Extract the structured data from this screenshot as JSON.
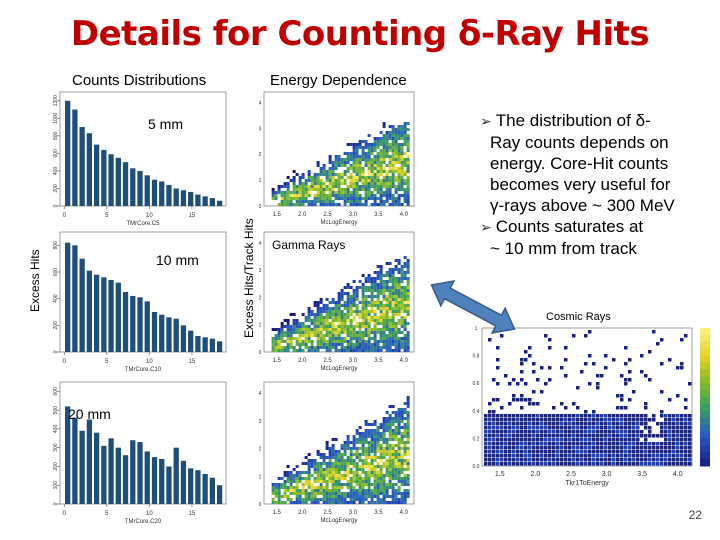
{
  "slide": {
    "title": "Details for Counting δ-Ray Hits",
    "counts_header": "Counts Distributions",
    "energy_header": "Energy Dependence",
    "label_5mm": "5 mm",
    "label_10mm": "10 mm",
    "label_20mm": "20 mm",
    "gamma_label": "Gamma Rays",
    "cosmic_label": "Cosmic Rays",
    "ylabel_excess_hits": "Excess Hits",
    "ylabel_excess_track": "Excess Hits/Track Hits",
    "bullets": [
      [
        "The distribution of δ-",
        "Ray counts depends on",
        "energy.  Core-Hit counts",
        "becomes very useful for",
        "γ-rays above ~ 300 MeV"
      ],
      [
        "Counts saturates at",
        "~ 10 mm from track"
      ]
    ],
    "page_number": "22",
    "colors": {
      "title": "#c00000",
      "bars": "#1f4e79",
      "arrow": "#4f81bd"
    }
  },
  "chart_data": [
    {
      "type": "bar",
      "panel": "counts-5mm",
      "xlabel": "TMrCore.C5",
      "x_ticks": [
        "0",
        "5",
        "10",
        "15"
      ],
      "y_ticks": [
        "0",
        "200",
        "400",
        "600",
        "800",
        "1000",
        "1200"
      ],
      "categories": [
        1,
        2,
        3,
        4,
        5,
        6,
        7,
        8,
        9,
        10,
        11,
        12,
        13,
        14,
        15,
        16,
        17,
        18,
        19,
        20,
        21,
        22
      ],
      "values": [
        1200,
        1100,
        900,
        830,
        700,
        640,
        590,
        550,
        500,
        430,
        400,
        350,
        300,
        280,
        240,
        200,
        180,
        160,
        130,
        110,
        90,
        60
      ],
      "ylim": [
        0,
        1300
      ]
    },
    {
      "type": "bar",
      "panel": "counts-10mm",
      "xlabel": "TMrCore.C10",
      "x_ticks": [
        "0",
        "5",
        "10",
        "15"
      ],
      "y_ticks": [
        "0",
        "200",
        "400",
        "600",
        "800"
      ],
      "categories": [
        1,
        2,
        3,
        4,
        5,
        6,
        7,
        8,
        9,
        10,
        11,
        12,
        13,
        14,
        15,
        16,
        17,
        18,
        19,
        20,
        21,
        22
      ],
      "values": [
        820,
        800,
        700,
        610,
        580,
        560,
        540,
        520,
        450,
        420,
        410,
        380,
        300,
        280,
        260,
        250,
        200,
        160,
        120,
        110,
        100,
        80
      ],
      "ylim": [
        0,
        900
      ]
    },
    {
      "type": "bar",
      "panel": "counts-20mm",
      "xlabel": "TMrCore.C20",
      "x_ticks": [
        "0",
        "5",
        "10",
        "15"
      ],
      "y_ticks": [
        "0",
        "100",
        "200",
        "300",
        "400",
        "500",
        "600"
      ],
      "categories": [
        1,
        2,
        3,
        4,
        5,
        6,
        7,
        8,
        9,
        10,
        11,
        12,
        13,
        14,
        15,
        16,
        17,
        18,
        19,
        20,
        21,
        22
      ],
      "values": [
        520,
        460,
        390,
        450,
        380,
        310,
        350,
        300,
        260,
        340,
        330,
        280,
        250,
        240,
        200,
        300,
        230,
        190,
        180,
        160,
        140,
        100
      ],
      "ylim": [
        0,
        650
      ]
    },
    {
      "type": "heatmap",
      "panel": "energy-5mm",
      "xlabel": "McLogEnergy",
      "x_ticks": [
        "1.5",
        "2.0",
        "2.5",
        "3.0",
        "3.5",
        "4.0"
      ],
      "y_ticks": [
        "0",
        "1",
        "2",
        "3",
        "4"
      ],
      "xlim": [
        1.25,
        4.2
      ],
      "ylim": [
        0,
        4.4
      ]
    },
    {
      "type": "heatmap",
      "panel": "energy-10mm",
      "xlabel": "McLogEnergy",
      "x_ticks": [
        "1.5",
        "2.0",
        "2.5",
        "3.0",
        "3.5",
        "4.0"
      ],
      "y_ticks": [
        "0",
        "1",
        "2",
        "3",
        "4"
      ],
      "xlim": [
        1.25,
        4.2
      ],
      "ylim": [
        0,
        4.4
      ]
    },
    {
      "type": "heatmap",
      "panel": "energy-20mm",
      "xlabel": "McLogEnergy",
      "x_ticks": [
        "1.5",
        "2.0",
        "2.5",
        "3.0",
        "3.5",
        "4.0"
      ],
      "y_ticks": [
        "0",
        "1",
        "2",
        "3",
        "4"
      ],
      "xlim": [
        1.25,
        4.2
      ],
      "ylim": [
        0,
        4.4
      ]
    },
    {
      "type": "heatmap",
      "panel": "cosmic",
      "xlabel": "Tkr1ToEnergy",
      "x_ticks": [
        "1.5",
        "2.0",
        "2.5",
        "3.0",
        "3.5",
        "4.0"
      ],
      "y_ticks": [
        "1",
        "0.8",
        "0.6",
        "0.4",
        "0.2",
        "0.0"
      ],
      "xlim": [
        1.25,
        4.2
      ],
      "ylim": [
        0,
        1.1
      ]
    }
  ]
}
